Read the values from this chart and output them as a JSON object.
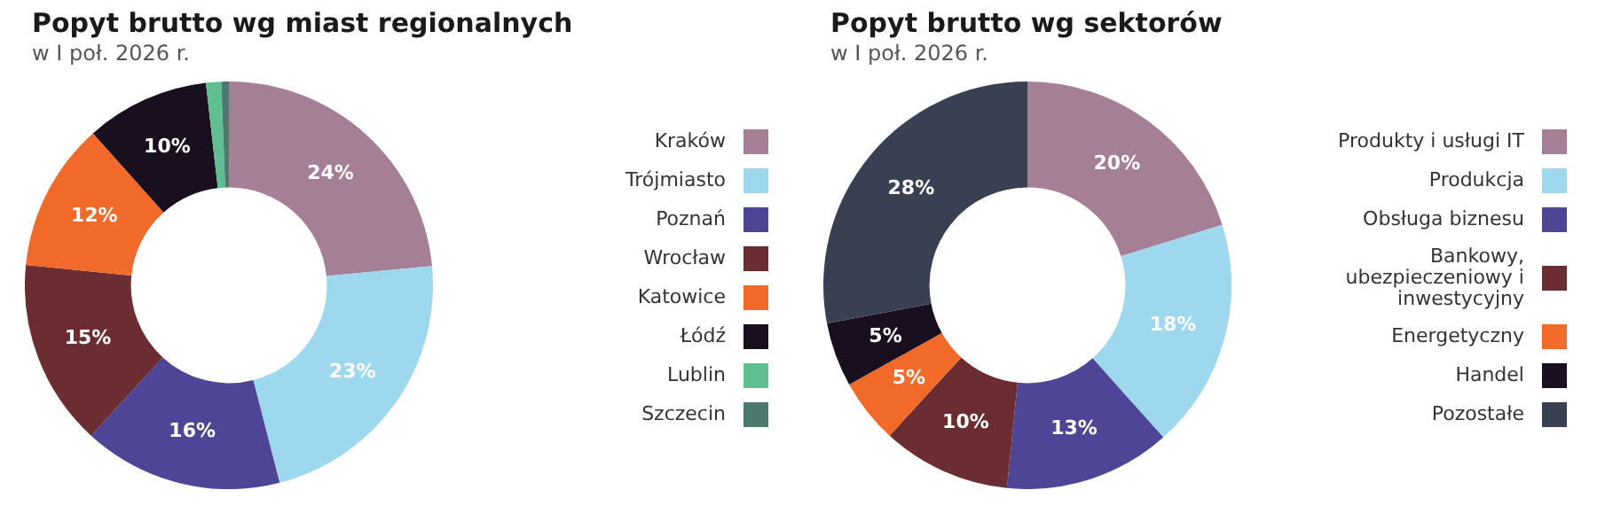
{
  "chart_data": [
    {
      "type": "donut",
      "title": "Popyt brutto wg miast regionalnych",
      "subtitle": "w I poł. 2026 r.",
      "categories": [
        "Kraków",
        "Trójmiasto",
        "Poznań",
        "Wrocław",
        "Katowice",
        "Łódź",
        "Lublin",
        "Szczecin"
      ],
      "values": [
        23.5,
        22.5,
        15.8,
        14.8,
        11.8,
        9.8,
        1.2,
        0.6
      ],
      "value_labels": [
        "24%",
        "23%",
        "16%",
        "15%",
        "12%",
        "10%",
        null,
        null
      ],
      "colors": [
        "#a57f96",
        "#9dd8ee",
        "#4f4596",
        "#6b2d31",
        "#f26a2a",
        "#1a0f1e",
        "#5fbf92",
        "#4c7a6e"
      ],
      "legend": "right"
    },
    {
      "type": "donut",
      "title": "Popyt brutto wg sektorów",
      "subtitle": "w I poł. 2026 r.",
      "categories": [
        "Produkty i usługi IT",
        "Produkcja",
        "Obsługa biznesu",
        "Bankowy, ubezpieczeniowy i inwestycyjny",
        "Energetyczny",
        "Handel",
        "Pozostałe"
      ],
      "values": [
        20.2,
        18.2,
        13.2,
        10.2,
        5.1,
        5.1,
        28
      ],
      "value_labels": [
        "20%",
        "18%",
        "13%",
        "10%",
        "5%",
        "5%",
        "28%"
      ],
      "colors": [
        "#a57f96",
        "#9dd8ee",
        "#4f4596",
        "#6b2d31",
        "#f26a2a",
        "#1a0f1e",
        "#394052"
      ],
      "legend": "right"
    }
  ]
}
